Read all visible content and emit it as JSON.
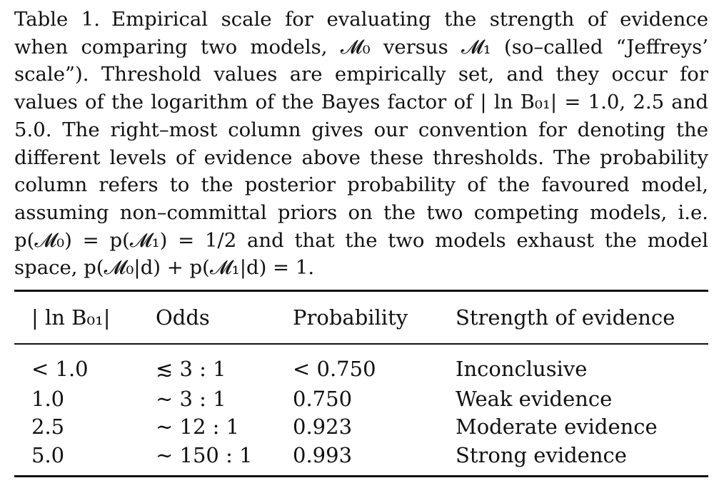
{
  "caption": {
    "label": "Table 1.",
    "text": "Empirical scale for evaluating the strength of evidence when comparing two models, 𝓜₀ versus 𝓜₁ (so–called “Jeffreys’ scale”). Threshold values are empirically set, and they occur for values of the logarithm of the Bayes factor of | ln B₀₁| = 1.0, 2.5 and 5.0. The right–most column gives our convention for denoting the different levels of evidence above these thresholds. The probability column refers to the posterior probability of the favoured model, assuming non–committal priors on the two competing models, i.e. p(𝓜₀) = p(𝓜₁) = 1/2 and that the two models exhaust the model space, p(𝓜₀|d) + p(𝓜₁|d) = 1."
  },
  "table": {
    "headers": [
      "| ln B₀₁|",
      "Odds",
      "Probability",
      "Strength of evidence"
    ],
    "rows": [
      [
        "< 1.0",
        "≲ 3 : 1",
        "< 0.750",
        "Inconclusive"
      ],
      [
        "1.0",
        "∼ 3 : 1",
        "0.750",
        "Weak evidence"
      ],
      [
        "2.5",
        "∼ 12 : 1",
        "0.923",
        "Moderate evidence"
      ],
      [
        "5.0",
        "∼ 150 : 1",
        "0.993",
        "Strong evidence"
      ]
    ]
  }
}
